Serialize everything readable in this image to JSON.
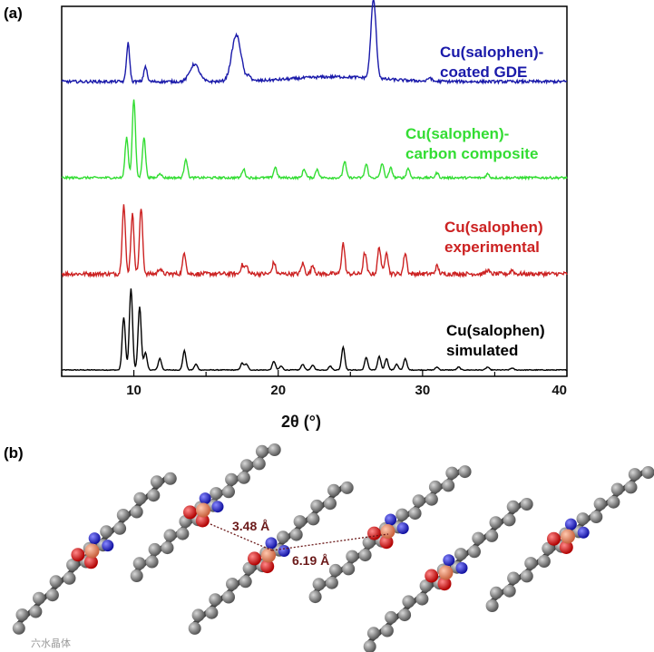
{
  "figure": {
    "panel_a_label": "(a)",
    "panel_b_label": "(b)",
    "watermark": "六水晶体"
  },
  "chart_data": {
    "type": "line",
    "title": "",
    "xlabel": "2θ (°)",
    "ylabel": "",
    "xlim": [
      5,
      40
    ],
    "xticks": [
      10,
      20,
      30,
      40
    ],
    "xtick_labels": [
      "10",
      "20",
      "30",
      "40"
    ],
    "series": [
      {
        "name": "Cu(salophen) simulated",
        "label_lines": [
          "Cu(salophen)",
          "simulated"
        ],
        "color": "#000000",
        "baseline": 0.0,
        "peaks": [
          [
            9.3,
            0.55
          ],
          [
            9.8,
            0.85
          ],
          [
            10.4,
            0.66
          ],
          [
            10.8,
            0.18
          ],
          [
            11.8,
            0.12
          ],
          [
            13.5,
            0.2
          ],
          [
            14.3,
            0.06
          ],
          [
            17.5,
            0.07
          ],
          [
            17.8,
            0.06
          ],
          [
            19.7,
            0.09
          ],
          [
            20.2,
            0.04
          ],
          [
            21.7,
            0.06
          ],
          [
            22.4,
            0.05
          ],
          [
            23.6,
            0.04
          ],
          [
            24.5,
            0.24
          ],
          [
            26.1,
            0.13
          ],
          [
            27.0,
            0.14
          ],
          [
            27.5,
            0.12
          ],
          [
            28.2,
            0.06
          ],
          [
            28.8,
            0.12
          ],
          [
            31.0,
            0.03
          ],
          [
            32.5,
            0.03
          ],
          [
            34.5,
            0.03
          ],
          [
            36.2,
            0.02
          ]
        ]
      },
      {
        "name": "Cu(salophen) experimental",
        "label_lines": [
          "Cu(salophen)",
          "experimental"
        ],
        "color": "#cc2222",
        "baseline": 1.0,
        "peaks": [
          [
            9.3,
            0.72
          ],
          [
            9.9,
            0.62
          ],
          [
            10.5,
            0.68
          ],
          [
            11.8,
            0.06
          ],
          [
            13.5,
            0.22
          ],
          [
            17.5,
            0.09
          ],
          [
            17.8,
            0.08
          ],
          [
            19.7,
            0.12
          ],
          [
            21.7,
            0.11
          ],
          [
            22.4,
            0.09
          ],
          [
            24.5,
            0.32
          ],
          [
            26.0,
            0.22
          ],
          [
            27.0,
            0.28
          ],
          [
            27.5,
            0.24
          ],
          [
            28.8,
            0.22
          ],
          [
            31.0,
            0.08
          ],
          [
            34.5,
            0.04
          ],
          [
            36.2,
            0.04
          ]
        ]
      },
      {
        "name": "Cu(salophen)-carbon composite",
        "label_lines": [
          "Cu(salophen)-",
          "carbon composite"
        ],
        "color": "#33dd33",
        "baseline": 2.0,
        "peaks": [
          [
            9.5,
            0.42
          ],
          [
            10.0,
            0.82
          ],
          [
            10.7,
            0.42
          ],
          [
            11.8,
            0.05
          ],
          [
            13.6,
            0.2
          ],
          [
            17.6,
            0.09
          ],
          [
            19.8,
            0.11
          ],
          [
            21.8,
            0.09
          ],
          [
            22.7,
            0.09
          ],
          [
            24.6,
            0.17
          ],
          [
            26.1,
            0.14
          ],
          [
            27.2,
            0.15
          ],
          [
            27.8,
            0.1
          ],
          [
            29.0,
            0.1
          ],
          [
            31.0,
            0.05
          ],
          [
            34.5,
            0.04
          ]
        ]
      },
      {
        "name": "Cu(salophen)-coated GDE",
        "label_lines": [
          "Cu(salophen)-",
          "coated GDE"
        ],
        "color": "#1a1aaa",
        "baseline": 3.0,
        "peaks": [
          [
            9.6,
            0.4
          ],
          [
            10.8,
            0.16
          ],
          [
            14.2,
            0.18
          ],
          [
            17.1,
            0.48
          ],
          [
            18.0,
            0.06
          ],
          [
            26.6,
            0.82
          ],
          [
            30.5,
            0.04
          ]
        ]
      }
    ]
  },
  "panel_b": {
    "distance_1": "3.48 Å",
    "distance_2": "6.19 Å"
  }
}
